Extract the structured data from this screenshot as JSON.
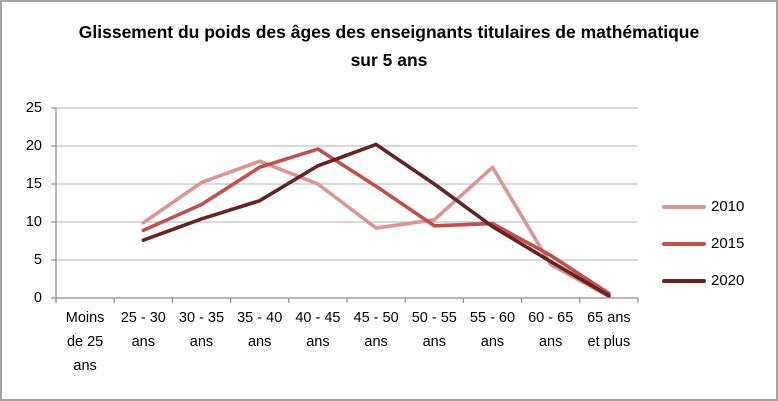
{
  "figure": {
    "background": "#FFFFFF",
    "border_color": "#A3A3A3"
  },
  "chart_data": {
    "type": "line",
    "title": "Glissement du poids des âges des enseignants titulaires de mathématique sur 5 ans",
    "categories": [
      "Moins de 25 ans",
      "25 - 30 ans",
      "30 - 35 ans",
      "35 - 40 ans",
      "40 - 45 ans",
      "45 - 50 ans",
      "50 - 55 ans",
      "55 - 60 ans",
      "60 - 65 ans",
      "65 ans et plus"
    ],
    "series": [
      {
        "name": "2010",
        "color": "#D99694",
        "values": [
          null,
          9.9,
          15.2,
          18.0,
          15.0,
          9.2,
          10.3,
          17.2,
          4.4,
          0.2
        ]
      },
      {
        "name": "2015",
        "color": "#C0504D",
        "values": [
          null,
          8.9,
          12.3,
          17.2,
          19.6,
          14.7,
          9.5,
          9.8,
          5.6,
          0.6
        ]
      },
      {
        "name": "2020",
        "color": "#632423",
        "values": [
          null,
          7.6,
          10.4,
          12.8,
          17.4,
          20.2,
          15.0,
          9.4,
          4.8,
          0.3
        ]
      }
    ],
    "y_ticks": [
      0,
      5,
      10,
      15,
      20,
      25
    ],
    "ylim": [
      0,
      25
    ],
    "xlabel": "",
    "ylabel": "",
    "grid": true,
    "legend_position": "right",
    "colors": {
      "gridline": "#B3B3B3",
      "axis": "#8C8C8C",
      "text": "#000000"
    }
  }
}
